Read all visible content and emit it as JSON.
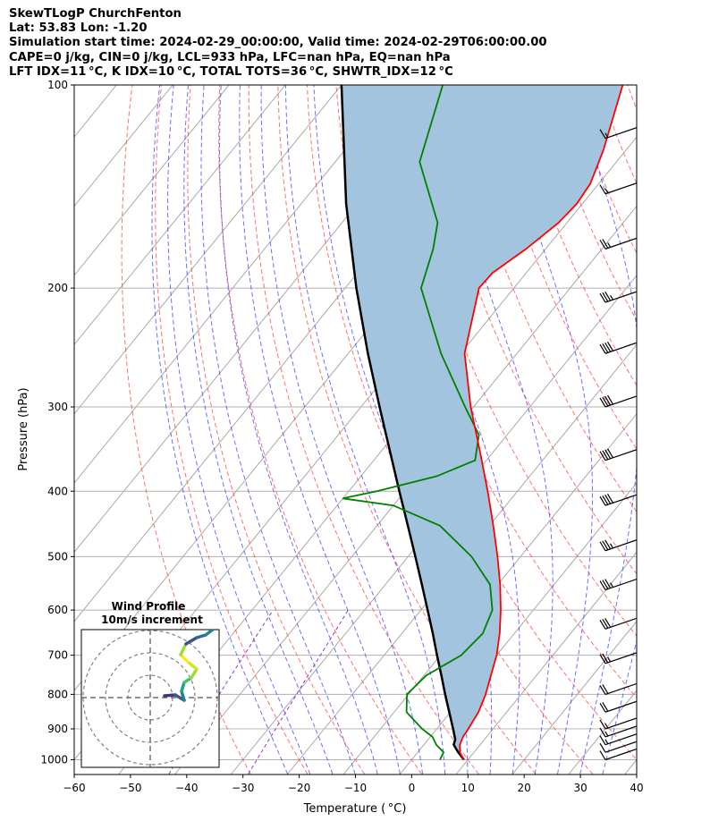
{
  "header": {
    "line1": "SkewTLogP ChurchFenton",
    "line2": "Lat: 53.83   Lon: -1.20",
    "line3": "Simulation start time: 2024-02-29_00:00:00, Valid time: 2024-02-29T06:00:00.00",
    "line4": "CAPE=0 j/kg, CIN=0 j/kg, LCL=933 hPa, LFC=nan hPa, EQ=nan hPa",
    "line5": "LFT IDX=11 °C, K IDX=10 °C, TOTAL TOTS=36 °C, SHWTR_IDX=12 °C"
  },
  "chart_data": {
    "type": "skewt",
    "xlabel": "Temperature ( °C)",
    "ylabel": "Pressure (hPa)",
    "xlim": [
      -60,
      40
    ],
    "ylim_pressure": [
      1050,
      100
    ],
    "y_scale": "log",
    "x_ticks": [
      -60,
      -50,
      -40,
      -30,
      -20,
      -10,
      0,
      10,
      20,
      30,
      40
    ],
    "x_tick_labels": [
      "−60",
      "−50",
      "−40",
      "−30",
      "−20",
      "−10",
      "0",
      "10",
      "20",
      "30",
      "40"
    ],
    "y_ticks": [
      100,
      200,
      300,
      400,
      500,
      600,
      700,
      800,
      900,
      1000
    ],
    "y_tick_labels": [
      "100",
      "200",
      "300",
      "400",
      "500",
      "600",
      "700",
      "800",
      "900",
      "1000"
    ],
    "grid": true,
    "colors": {
      "temperature": "#ff0000",
      "dewpoint": "#008000",
      "parcel": "#000000",
      "fill": "#a3c4df",
      "dry_adiabat": "#ff4040",
      "moist_adiabat": "#3c3cff",
      "mixing_ratio": "#9932cc",
      "isotherm": "#a0a0a0"
    },
    "temperature_profile": [
      [
        1000,
        9.3
      ],
      [
        975,
        7.5
      ],
      [
        950,
        6.4
      ],
      [
        925,
        5.8
      ],
      [
        900,
        5.6
      ],
      [
        850,
        5.0
      ],
      [
        800,
        3.7
      ],
      [
        750,
        1.9
      ],
      [
        700,
        0.0
      ],
      [
        650,
        -2.6
      ],
      [
        600,
        -5.8
      ],
      [
        550,
        -9.6
      ],
      [
        500,
        -14.1
      ],
      [
        450,
        -19.3
      ],
      [
        400,
        -25.3
      ],
      [
        350,
        -32.3
      ],
      [
        300,
        -40.5
      ],
      [
        250,
        -49.3
      ],
      [
        200,
        -56.2
      ],
      [
        190,
        -56.0
      ],
      [
        175,
        -53.5
      ],
      [
        160,
        -51.5
      ],
      [
        150,
        -51.0
      ],
      [
        140,
        -51.5
      ],
      [
        125,
        -54.0
      ],
      [
        100,
        -60.0
      ]
    ],
    "dewpoint_profile": [
      [
        1000,
        5.0
      ],
      [
        975,
        4.6
      ],
      [
        950,
        2.2
      ],
      [
        925,
        0.4
      ],
      [
        900,
        -2.6
      ],
      [
        850,
        -7.8
      ],
      [
        800,
        -10.3
      ],
      [
        750,
        -9.6
      ],
      [
        700,
        -6.3
      ],
      [
        650,
        -5.6
      ],
      [
        600,
        -7.3
      ],
      [
        550,
        -11.4
      ],
      [
        500,
        -18.7
      ],
      [
        450,
        -28.8
      ],
      [
        420,
        -40.0
      ],
      [
        410,
        -50.0
      ],
      [
        400,
        -45.0
      ],
      [
        380,
        -36.5
      ],
      [
        360,
        -32.0
      ],
      [
        330,
        -35.0
      ],
      [
        300,
        -41.5
      ],
      [
        250,
        -53.5
      ],
      [
        200,
        -66.5
      ],
      [
        175,
        -70.0
      ],
      [
        160,
        -73.0
      ],
      [
        130,
        -85.0
      ],
      [
        100,
        -92.0
      ]
    ],
    "parcel_profile": [
      [
        1000,
        9.3
      ],
      [
        975,
        7.2
      ],
      [
        950,
        5.3
      ],
      [
        933,
        4.8
      ],
      [
        900,
        2.9
      ],
      [
        850,
        -0.2
      ],
      [
        800,
        -3.5
      ],
      [
        750,
        -6.9
      ],
      [
        700,
        -10.6
      ],
      [
        650,
        -14.5
      ],
      [
        600,
        -18.8
      ],
      [
        550,
        -23.5
      ],
      [
        500,
        -28.7
      ],
      [
        450,
        -34.5
      ],
      [
        400,
        -41.0
      ],
      [
        350,
        -48.3
      ],
      [
        300,
        -56.7
      ],
      [
        250,
        -66.5
      ],
      [
        200,
        -78.0
      ],
      [
        150,
        -92.0
      ],
      [
        100,
        -110.0
      ]
    ],
    "wind_barbs_pressure": [
      100,
      120,
      145,
      175,
      210,
      250,
      300,
      360,
      420,
      490,
      560,
      640,
      720,
      800,
      850,
      900,
      925,
      950,
      975,
      1000
    ],
    "wind_barb_speeds_kt": [
      20,
      15,
      15,
      25,
      35,
      40,
      40,
      40,
      40,
      35,
      35,
      30,
      25,
      20,
      20,
      15,
      15,
      15,
      10,
      10
    ],
    "inset": {
      "title": "Wind Profile",
      "subtitle": "10m/s increment"
    }
  }
}
